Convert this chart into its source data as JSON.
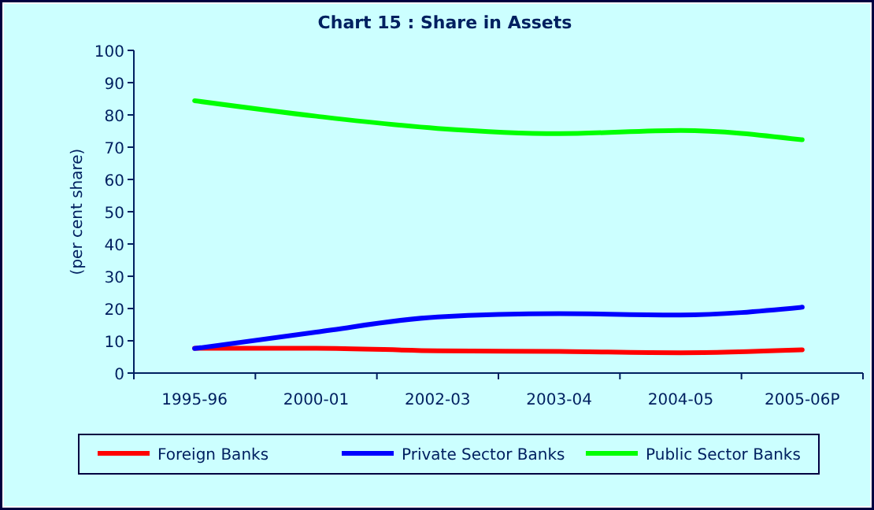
{
  "chart_data": {
    "type": "line",
    "title": "Chart 15 : Share in Assets",
    "ylabel": "(per cent share)",
    "categories": [
      "1995-96",
      "2000-01",
      "2002-03",
      "2003-04",
      "2004-05",
      "2005-06P"
    ],
    "series": [
      {
        "name": "Foreign Banks",
        "color": "#ff0000",
        "values": [
          7.7,
          7.7,
          6.9,
          6.7,
          6.3,
          7.2
        ]
      },
      {
        "name": "Private Sector Banks",
        "color": "#0000ff",
        "values": [
          7.6,
          12.7,
          17.4,
          18.4,
          18.0,
          20.4
        ]
      },
      {
        "name": "Public Sector Banks",
        "color": "#00ff00",
        "values": [
          84.4,
          79.6,
          75.8,
          74.2,
          75.2,
          72.3
        ]
      }
    ],
    "ylim": [
      0,
      100
    ],
    "yticks": [
      0,
      10,
      20,
      30,
      40,
      50,
      60,
      70,
      80,
      90,
      100
    ],
    "grid": false,
    "legend": "bottom",
    "marker": "none",
    "line_style": "solid"
  }
}
